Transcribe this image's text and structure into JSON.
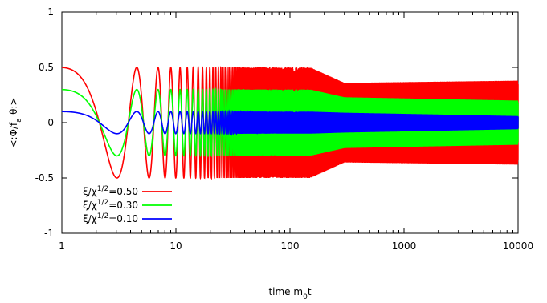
{
  "chart_data": {
    "type": "line",
    "title": "",
    "xlabel": "time m",
    "xlabel_sub": "0",
    "xlabel_tail": "t",
    "ylabel": "<:Φ/f",
    "ylabel_sub": "a",
    "ylabel_tail": "-θ:>",
    "x_scale": "log",
    "xlim": [
      1,
      10000
    ],
    "ylim": [
      -1,
      1
    ],
    "x_ticks": [
      {
        "value": 1,
        "label": "1"
      },
      {
        "value": 10,
        "label": "10"
      },
      {
        "value": 100,
        "label": "100"
      },
      {
        "value": 1000,
        "label": "1000"
      },
      {
        "value": 10000,
        "label": "10000"
      }
    ],
    "y_ticks": [
      {
        "value": -1,
        "label": "-1"
      },
      {
        "value": -0.5,
        "label": "-0.5"
      },
      {
        "value": 0,
        "label": "0"
      },
      {
        "value": 0.5,
        "label": "0.5"
      },
      {
        "value": 1,
        "label": "1"
      }
    ],
    "grid": false,
    "legend_position": "bottom-left",
    "series": [
      {
        "name_prefix": "ξ/χ",
        "name_sup": "1/2",
        "name_suffix": "=0.50",
        "color": "#ff0000",
        "initial_value": 0.42,
        "max_amplitude": 0.5,
        "late_amplitude": 0.36,
        "late_amplitude_final": 0.38
      },
      {
        "name_prefix": "ξ/χ",
        "name_sup": "1/2",
        "name_suffix": "=0.30",
        "color": "#00ff00",
        "initial_value": 0.25,
        "max_amplitude": 0.3,
        "late_amplitude": 0.23,
        "late_amplitude_final": 0.2
      },
      {
        "name_prefix": "ξ/χ",
        "name_sup": "1/2",
        "name_suffix": "=0.10",
        "color": "#0000ff",
        "initial_value": 0.085,
        "max_amplitude": 0.1,
        "late_amplitude": 0.09,
        "late_amplitude_final": 0.06
      }
    ]
  }
}
